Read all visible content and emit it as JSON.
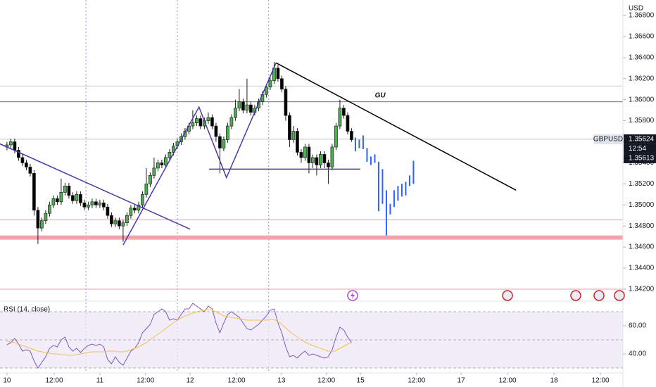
{
  "chart_data": {
    "type": "candlestick",
    "symbol": "GBPUSD",
    "currency": "USD",
    "countdown": "12:54",
    "up_color": "#4caf50",
    "down_color": "#000000",
    "annotation": {
      "text": "GU",
      "x": 96.4,
      "y": 1.3604
    },
    "xlim": [
      -1.8,
      159.1
    ],
    "xticks": [
      {
        "value": 0,
        "label": "10"
      },
      {
        "value": 12.2,
        "label": "12:00"
      },
      {
        "value": 24,
        "label": "11"
      },
      {
        "value": 35.8,
        "label": "12:00"
      },
      {
        "value": 47.3,
        "label": "12"
      },
      {
        "value": 59.3,
        "label": "12:00"
      },
      {
        "value": 70.9,
        "label": "13"
      },
      {
        "value": 82.5,
        "label": "12:00"
      },
      {
        "value": 91.3,
        "label": "15"
      },
      {
        "value": 105.8,
        "label": "12:00"
      },
      {
        "value": 117.3,
        "label": "17"
      },
      {
        "value": 129.3,
        "label": "12:00"
      },
      {
        "value": 141.3,
        "label": "18"
      },
      {
        "value": 153.3,
        "label": "12:00"
      }
    ],
    "ylim": [
      1.34106,
      1.36947
    ],
    "yticks": [
      {
        "value": 1.342,
        "label": "1.34200"
      },
      {
        "value": 1.344,
        "label": "1.34400"
      },
      {
        "value": 1.346,
        "label": "1.34600"
      },
      {
        "value": 1.348,
        "label": "1.34800"
      },
      {
        "value": 1.35,
        "label": "1.35000"
      },
      {
        "value": 1.352,
        "label": "1.35200"
      },
      {
        "value": 1.354,
        "label": "1.35400"
      },
      {
        "value": 1.356,
        "label": "1.35600"
      },
      {
        "value": 1.358,
        "label": "1.35800"
      },
      {
        "value": 1.36,
        "label": "1.36000"
      },
      {
        "value": 1.362,
        "label": "1.36200"
      },
      {
        "value": 1.364,
        "label": "1.36400"
      },
      {
        "value": 1.366,
        "label": "1.36600"
      },
      {
        "value": 1.368,
        "label": "1.36800"
      }
    ],
    "candles": [
      [
        1.3555,
        1.356,
        1.3552,
        1.3557
      ],
      [
        1.3557,
        1.3563,
        1.3554,
        1.356
      ],
      [
        1.356,
        1.3563,
        1.3549,
        1.3552
      ],
      [
        1.3552,
        1.3555,
        1.3542,
        1.3545
      ],
      [
        1.3545,
        1.3548,
        1.3537,
        1.354
      ],
      [
        1.354,
        1.3543,
        1.3533,
        1.3536
      ],
      [
        1.3536,
        1.3539,
        1.3527,
        1.353
      ],
      [
        1.353,
        1.3533,
        1.349,
        1.3495
      ],
      [
        1.3495,
        1.3498,
        1.3463,
        1.3478
      ],
      [
        1.3478,
        1.3488,
        1.3475,
        1.3485
      ],
      [
        1.3485,
        1.3495,
        1.3482,
        1.3492
      ],
      [
        1.3492,
        1.3503,
        1.3489,
        1.35
      ],
      [
        1.35,
        1.3509,
        1.3497,
        1.3506
      ],
      [
        1.3506,
        1.3509,
        1.35,
        1.3503
      ],
      [
        1.3503,
        1.3525,
        1.35,
        1.3512
      ],
      [
        1.3512,
        1.3521,
        1.3509,
        1.3518
      ],
      [
        1.3518,
        1.3521,
        1.3506,
        1.3509
      ],
      [
        1.3509,
        1.3512,
        1.3501,
        1.3504
      ],
      [
        1.3504,
        1.3513,
        1.3501,
        1.351
      ],
      [
        1.351,
        1.3513,
        1.3499,
        1.3502
      ],
      [
        1.3502,
        1.3505,
        1.3495,
        1.3498
      ],
      [
        1.3498,
        1.3503,
        1.3495,
        1.35
      ],
      [
        1.35,
        1.3506,
        1.3497,
        1.3503
      ],
      [
        1.3503,
        1.3506,
        1.3497,
        1.35
      ],
      [
        1.35,
        1.3505,
        1.3497,
        1.3502
      ],
      [
        1.3502,
        1.3505,
        1.3495,
        1.3498
      ],
      [
        1.3498,
        1.3501,
        1.3487,
        1.349
      ],
      [
        1.349,
        1.3493,
        1.3479,
        1.3482
      ],
      [
        1.3482,
        1.3488,
        1.3479,
        1.3485
      ],
      [
        1.3485,
        1.3488,
        1.3477,
        1.348
      ],
      [
        1.348,
        1.3486,
        1.3465,
        1.3483
      ],
      [
        1.3483,
        1.3493,
        1.348,
        1.349
      ],
      [
        1.349,
        1.35,
        1.3487,
        1.3497
      ],
      [
        1.3497,
        1.35,
        1.3492,
        1.3495
      ],
      [
        1.3495,
        1.3503,
        1.3492,
        1.35
      ],
      [
        1.35,
        1.3513,
        1.3497,
        1.351
      ],
      [
        1.351,
        1.3535,
        1.3507,
        1.352
      ],
      [
        1.352,
        1.3531,
        1.3517,
        1.3528
      ],
      [
        1.3528,
        1.3545,
        1.3525,
        1.3535
      ],
      [
        1.3535,
        1.3543,
        1.3532,
        1.354
      ],
      [
        1.354,
        1.3543,
        1.3535,
        1.3538
      ],
      [
        1.3538,
        1.3548,
        1.3535,
        1.3545
      ],
      [
        1.3545,
        1.3553,
        1.3542,
        1.355
      ],
      [
        1.355,
        1.3559,
        1.3547,
        1.3556
      ],
      [
        1.3556,
        1.3563,
        1.3553,
        1.356
      ],
      [
        1.356,
        1.3568,
        1.3557,
        1.3565
      ],
      [
        1.3565,
        1.3573,
        1.3562,
        1.357
      ],
      [
        1.357,
        1.3578,
        1.3567,
        1.3575
      ],
      [
        1.3575,
        1.359,
        1.3572,
        1.3578
      ],
      [
        1.3578,
        1.3585,
        1.3575,
        1.3582
      ],
      [
        1.3582,
        1.3585,
        1.3572,
        1.3575
      ],
      [
        1.3575,
        1.3583,
        1.3572,
        1.358
      ],
      [
        1.358,
        1.3588,
        1.3577,
        1.3583
      ],
      [
        1.3583,
        1.3586,
        1.3572,
        1.3575
      ],
      [
        1.3575,
        1.3578,
        1.356,
        1.3565
      ],
      [
        1.3565,
        1.3568,
        1.353,
        1.3554
      ],
      [
        1.3554,
        1.3565,
        1.3551,
        1.3562
      ],
      [
        1.3562,
        1.3578,
        1.3559,
        1.3575
      ],
      [
        1.3575,
        1.3586,
        1.3572,
        1.3583
      ],
      [
        1.3583,
        1.36,
        1.358,
        1.3592
      ],
      [
        1.3592,
        1.361,
        1.3589,
        1.3598
      ],
      [
        1.3598,
        1.3601,
        1.3587,
        1.359
      ],
      [
        1.359,
        1.362,
        1.3587,
        1.3595
      ],
      [
        1.3595,
        1.3598,
        1.3585,
        1.3588
      ],
      [
        1.3588,
        1.3595,
        1.3585,
        1.3592
      ],
      [
        1.3592,
        1.3601,
        1.3589,
        1.3598
      ],
      [
        1.3598,
        1.3608,
        1.3595,
        1.3605
      ],
      [
        1.3605,
        1.3615,
        1.3602,
        1.3612
      ],
      [
        1.3612,
        1.3621,
        1.3609,
        1.3618
      ],
      [
        1.3618,
        1.3636,
        1.3615,
        1.363
      ],
      [
        1.363,
        1.3633,
        1.3617,
        1.362
      ],
      [
        1.362,
        1.3623,
        1.3607,
        1.361
      ],
      [
        1.361,
        1.3613,
        1.358,
        1.3585
      ],
      [
        1.3585,
        1.3588,
        1.3555,
        1.3562
      ],
      [
        1.3562,
        1.3575,
        1.3559,
        1.357
      ],
      [
        1.357,
        1.3573,
        1.3547,
        1.355
      ],
      [
        1.355,
        1.3553,
        1.354,
        1.3545
      ],
      [
        1.3545,
        1.3558,
        1.3542,
        1.3555
      ],
      [
        1.3555,
        1.3558,
        1.353,
        1.354
      ],
      [
        1.354,
        1.3548,
        1.3535,
        1.3545
      ],
      [
        1.3545,
        1.3548,
        1.3528,
        1.3538
      ],
      [
        1.3538,
        1.3551,
        1.3535,
        1.3548
      ],
      [
        1.3548,
        1.3551,
        1.3535,
        1.354
      ],
      [
        1.354,
        1.3543,
        1.352,
        1.3536
      ],
      [
        1.3536,
        1.3558,
        1.3533,
        1.3555
      ],
      [
        1.3555,
        1.3578,
        1.3552,
        1.3575
      ],
      [
        1.3575,
        1.36,
        1.3572,
        1.3592
      ],
      [
        1.3592,
        1.3595,
        1.3582,
        1.3585
      ],
      [
        1.3585,
        1.3588,
        1.3567,
        1.357
      ],
      [
        1.357,
        1.3573,
        1.356,
        1.3562
      ]
    ],
    "levels": [
      {
        "value": 1.3613,
        "color": "#c8cbd3"
      },
      {
        "value": 1.3598,
        "color": "#6b6f78"
      },
      {
        "value": 1.3486,
        "color": "#ef9aa5"
      },
      {
        "value": 1.342,
        "color": "#ef9aa5"
      }
    ],
    "zones": [
      {
        "range": [
          1.3467,
          1.3471
        ],
        "color": "#f4a3ad"
      }
    ],
    "session_lines": [
      20.4,
      44,
      67.6
    ],
    "drawings": [
      {
        "color": "#4a3aa8",
        "points": [
          [
            -1.8,
            1.3558
          ],
          [
            47.3,
            1.3477
          ]
        ]
      },
      {
        "color": "#4a3aa8",
        "points": [
          [
            30,
            1.3462
          ],
          [
            49.6,
            1.3593
          ],
          [
            56.7,
            1.3526
          ],
          [
            69.5,
            1.3635
          ]
        ]
      },
      {
        "color": "#4a3aa8",
        "points": [
          [
            52.2,
            1.3534
          ],
          [
            91.3,
            1.3534
          ]
        ]
      },
      {
        "color": "#000000",
        "points": [
          [
            69.5,
            1.3635
          ],
          [
            131.5,
            1.3514
          ]
        ]
      }
    ],
    "projection": {
      "color": "#2962ff",
      "bars": [
        [
          90,
          1.3564,
          1.3551
        ],
        [
          91,
          1.3562,
          1.3554
        ],
        [
          92,
          1.3566,
          1.3553
        ],
        [
          93,
          1.3554,
          1.3541
        ],
        [
          94,
          1.3546,
          1.3538
        ],
        [
          95,
          1.3548,
          1.354
        ],
        [
          96,
          1.3541,
          1.3494
        ],
        [
          97,
          1.3534,
          1.3501
        ],
        [
          98,
          1.3514,
          1.3471
        ],
        [
          99,
          1.3501,
          1.3491
        ],
        [
          100,
          1.3514,
          1.3498
        ],
        [
          101,
          1.3518,
          1.3504
        ],
        [
          102,
          1.352,
          1.3508
        ],
        [
          103,
          1.3522,
          1.3509
        ],
        [
          104,
          1.3528,
          1.3518
        ],
        [
          105,
          1.3542,
          1.352
        ]
      ]
    },
    "price_tags": [
      {
        "value": 1.35624,
        "label": "1.35624"
      },
      {
        "value": 1.35613,
        "label": "1.35613"
      }
    ],
    "indicator": {
      "type": "line",
      "title": "RSI (14, close)",
      "ylim": [
        26.5,
        76.5
      ],
      "yticks": [
        {
          "value": 60,
          "label": "60.00"
        },
        {
          "value": 40,
          "label": "40.00"
        }
      ],
      "band": [
        30,
        70
      ],
      "guides": [
        70,
        50,
        30
      ],
      "series": [
        {
          "color": "#7e57c2",
          "values": [
            46.5,
            48,
            51,
            47,
            42,
            43,
            42,
            35,
            30,
            34,
            38,
            44,
            46,
            45,
            50,
            52,
            45,
            42,
            44,
            41,
            44,
            46,
            47,
            46,
            47,
            45,
            36,
            33,
            38,
            34,
            32,
            37,
            42,
            44,
            48,
            55,
            58,
            61,
            68,
            70,
            72,
            70,
            64,
            65,
            64,
            68,
            72,
            72,
            76,
            74,
            72,
            70,
            74,
            72,
            62,
            55,
            62,
            68,
            70,
            68,
            66,
            62,
            58,
            57,
            59,
            61,
            64,
            67,
            71,
            72,
            62,
            55,
            45,
            38,
            39,
            37,
            40,
            42,
            39,
            40,
            39,
            38,
            37,
            38,
            43,
            52,
            59,
            57,
            52,
            48
          ]
        },
        {
          "color": "#f2c14e",
          "values": [
            49,
            48.5,
            48,
            47,
            46,
            45,
            44,
            43,
            42,
            41.5,
            41,
            40.5,
            40,
            40,
            39.5,
            39.5,
            39,
            39,
            39.5,
            40,
            40.5,
            41,
            41.5,
            41.5,
            41.5,
            41.5,
            42,
            42,
            42,
            41.5,
            41.5,
            42,
            43,
            44,
            45,
            46.5,
            48,
            50,
            52,
            54,
            56,
            58,
            60,
            62,
            64,
            65.5,
            67,
            68,
            69,
            70,
            70.5,
            71,
            71.5,
            71,
            70,
            68.5,
            67,
            66.5,
            66,
            65.5,
            65,
            64.5,
            64,
            64,
            64,
            64,
            64,
            64,
            64.5,
            64.5,
            63,
            61,
            58.5,
            56,
            54,
            52,
            50,
            48.5,
            47,
            46,
            45,
            44,
            43,
            42,
            41.5,
            42.5,
            44,
            45.5,
            47,
            48
          ]
        }
      ]
    }
  }
}
